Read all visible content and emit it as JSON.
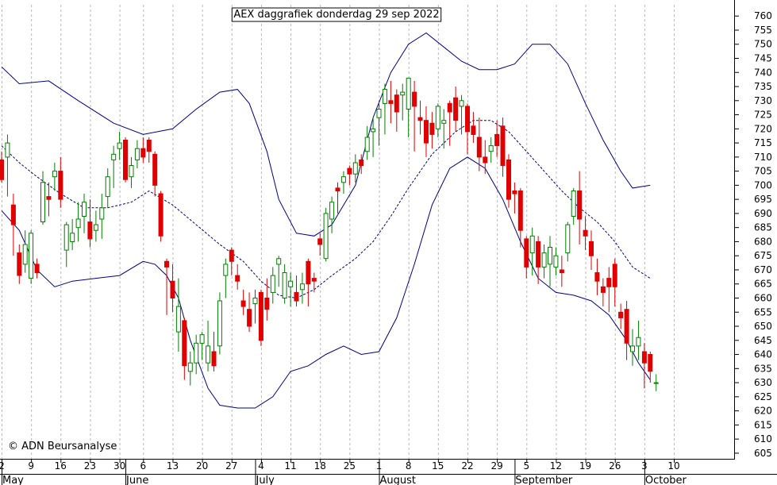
{
  "chart_data": {
    "type": "candlestick",
    "title": "AEX daggrafiek donderdag 29 sep 2022",
    "credit": "© ADN Beursanalyse",
    "y_axis_side": "right",
    "ylim": [
      603,
      764
    ],
    "yticks": [
      605,
      610,
      615,
      620,
      625,
      630,
      635,
      640,
      645,
      650,
      655,
      660,
      665,
      670,
      675,
      680,
      685,
      690,
      695,
      700,
      705,
      710,
      715,
      720,
      725,
      730,
      735,
      740,
      745,
      750,
      755,
      760
    ],
    "grid": "vertical-dashed",
    "x_tick_labels": [
      {
        "i": 0,
        "label": "2"
      },
      {
        "i": 5,
        "label": "9"
      },
      {
        "i": 10,
        "label": "16"
      },
      {
        "i": 15,
        "label": "23"
      },
      {
        "i": 20,
        "label": "30"
      },
      {
        "i": 24,
        "label": "6"
      },
      {
        "i": 29,
        "label": "13"
      },
      {
        "i": 34,
        "label": "20"
      },
      {
        "i": 39,
        "label": "27"
      },
      {
        "i": 44,
        "label": "4"
      },
      {
        "i": 49,
        "label": "11"
      },
      {
        "i": 54,
        "label": "18"
      },
      {
        "i": 59,
        "label": "25"
      },
      {
        "i": 64,
        "label": "1"
      },
      {
        "i": 69,
        "label": "8"
      },
      {
        "i": 74,
        "label": "15"
      },
      {
        "i": 79,
        "label": "22"
      },
      {
        "i": 84,
        "label": "29"
      },
      {
        "i": 89,
        "label": "5"
      },
      {
        "i": 94,
        "label": "12"
      },
      {
        "i": 99,
        "label": "19"
      },
      {
        "i": 104,
        "label": "26"
      },
      {
        "i": 109,
        "label": "3"
      },
      {
        "i": 114,
        "label": "10"
      }
    ],
    "months": [
      {
        "i": 0,
        "label": "May"
      },
      {
        "i": 21,
        "label": "June"
      },
      {
        "i": 43,
        "label": "July"
      },
      {
        "i": 64,
        "label": "August"
      },
      {
        "i": 87,
        "label": "September"
      },
      {
        "i": 109,
        "label": "October"
      }
    ],
    "candles": [
      [
        709,
        712,
        701,
        702
      ],
      [
        710,
        718,
        696,
        715
      ],
      [
        693,
        697,
        675,
        686
      ],
      [
        676,
        679,
        665,
        668
      ],
      [
        672,
        684,
        669,
        679
      ],
      [
        667,
        684,
        665,
        683
      ],
      [
        672,
        674,
        667,
        669
      ],
      [
        687,
        705,
        686,
        701
      ],
      [
        696,
        701,
        689,
        695
      ],
      [
        703,
        708,
        698,
        705
      ],
      [
        705,
        710,
        692,
        695
      ],
      [
        677,
        687,
        671,
        686
      ],
      [
        680,
        688,
        677,
        683
      ],
      [
        685,
        694,
        680,
        688
      ],
      [
        689,
        697,
        683,
        694
      ],
      [
        687,
        695,
        678,
        681
      ],
      [
        684,
        691,
        680,
        686
      ],
      [
        688,
        697,
        681,
        692
      ],
      [
        696,
        706,
        692,
        703
      ],
      [
        709,
        714,
        699,
        711
      ],
      [
        713,
        719,
        709,
        715
      ],
      [
        716,
        717,
        701,
        702
      ],
      [
        703,
        710,
        699,
        707
      ],
      [
        709,
        716,
        706,
        713
      ],
      [
        713,
        717,
        708,
        710
      ],
      [
        716,
        717,
        708,
        712
      ],
      [
        711,
        712,
        696,
        700
      ],
      [
        697,
        698,
        680,
        682
      ],
      [
        673,
        674,
        654,
        671
      ],
      [
        666,
        672,
        655,
        660
      ],
      [
        648,
        667,
        641,
        657
      ],
      [
        652,
        653,
        631,
        636
      ],
      [
        634,
        641,
        629,
        637
      ],
      [
        637,
        647,
        633,
        644
      ],
      [
        644,
        648,
        638,
        647
      ],
      [
        637,
        652,
        634,
        643
      ],
      [
        641,
        648,
        634,
        636
      ],
      [
        643,
        662,
        640,
        659
      ],
      [
        668,
        674,
        660,
        672
      ],
      [
        677,
        678,
        668,
        673
      ],
      [
        668,
        672,
        663,
        666
      ],
      [
        659,
        663,
        654,
        657
      ],
      [
        656,
        662,
        648,
        650
      ],
      [
        658,
        663,
        651,
        660
      ],
      [
        662,
        663,
        643,
        645
      ],
      [
        660,
        667,
        652,
        656
      ],
      [
        662,
        671,
        658,
        668
      ],
      [
        672,
        675,
        664,
        674
      ],
      [
        660,
        672,
        658,
        669
      ],
      [
        664,
        669,
        657,
        666
      ],
      [
        662,
        668,
        657,
        659
      ],
      [
        663,
        669,
        658,
        665
      ],
      [
        673,
        674,
        657,
        665
      ],
      [
        667,
        669,
        662,
        666
      ],
      [
        681,
        683,
        675,
        679
      ],
      [
        674,
        692,
        673,
        690
      ],
      [
        688,
        696,
        683,
        694
      ],
      [
        699,
        701,
        690,
        698
      ],
      [
        701,
        705,
        697,
        703
      ],
      [
        706,
        707,
        700,
        704
      ],
      [
        704,
        711,
        701,
        708
      ],
      [
        709,
        711,
        704,
        707
      ],
      [
        712,
        721,
        709,
        717
      ],
      [
        719,
        724,
        710,
        720
      ],
      [
        724,
        730,
        714,
        727
      ],
      [
        729,
        736,
        718,
        734
      ],
      [
        730,
        737,
        722,
        729
      ],
      [
        732,
        734,
        719,
        726
      ],
      [
        732,
        736,
        723,
        733
      ],
      [
        727,
        738,
        717,
        738
      ],
      [
        733,
        737,
        712,
        728
      ],
      [
        724,
        730,
        718,
        723
      ],
      [
        723,
        728,
        710,
        715
      ],
      [
        722,
        726,
        713,
        718
      ],
      [
        720,
        729,
        717,
        728
      ],
      [
        722,
        727,
        713,
        723
      ],
      [
        729,
        730,
        714,
        726
      ],
      [
        731,
        735,
        719,
        723
      ],
      [
        728,
        732,
        718,
        730
      ],
      [
        728,
        729,
        711,
        719
      ],
      [
        721,
        726,
        715,
        718
      ],
      [
        717,
        724,
        705,
        710
      ],
      [
        710,
        716,
        704,
        708
      ],
      [
        712,
        717,
        708,
        714
      ],
      [
        718,
        723,
        710,
        714
      ],
      [
        721,
        724,
        703,
        707
      ],
      [
        709,
        711,
        692,
        695
      ],
      [
        698,
        701,
        690,
        697
      ],
      [
        698,
        699,
        678,
        684
      ],
      [
        681,
        682,
        667,
        671
      ],
      [
        676,
        685,
        668,
        682
      ],
      [
        680,
        682,
        665,
        671
      ],
      [
        671,
        679,
        667,
        676
      ],
      [
        672,
        682,
        664,
        678
      ],
      [
        671,
        678,
        668,
        675
      ],
      [
        670,
        675,
        664,
        669
      ],
      [
        676,
        687,
        673,
        686
      ],
      [
        689,
        699,
        686,
        698
      ],
      [
        698,
        705,
        679,
        688
      ],
      [
        684,
        689,
        677,
        682
      ],
      [
        680,
        684,
        670,
        675
      ],
      [
        669,
        674,
        661,
        666
      ],
      [
        664,
        667,
        657,
        662
      ],
      [
        667,
        671,
        655,
        664
      ],
      [
        672,
        674,
        657,
        664
      ],
      [
        655,
        658,
        649,
        653
      ],
      [
        656,
        659,
        638,
        644
      ],
      [
        641,
        649,
        636,
        643
      ],
      [
        643,
        652,
        638,
        646
      ],
      [
        641,
        644,
        628,
        637
      ],
      [
        640,
        641,
        630,
        634
      ],
      [
        630,
        633,
        627,
        630
      ]
    ],
    "bollinger_upper": [
      [
        0,
        742
      ],
      [
        3,
        736
      ],
      [
        8,
        737
      ],
      [
        13,
        730
      ],
      [
        19,
        722
      ],
      [
        24,
        718
      ],
      [
        29,
        720
      ],
      [
        33,
        727
      ],
      [
        37,
        733
      ],
      [
        40,
        734
      ],
      [
        42,
        729
      ],
      [
        45,
        712
      ],
      [
        47,
        695
      ],
      [
        50,
        683
      ],
      [
        53,
        682
      ],
      [
        56,
        686
      ],
      [
        60,
        700
      ],
      [
        63,
        724
      ],
      [
        66,
        740
      ],
      [
        69,
        750
      ],
      [
        72,
        754
      ],
      [
        75,
        749
      ],
      [
        78,
        744
      ],
      [
        81,
        741
      ],
      [
        84,
        741
      ],
      [
        87,
        743
      ],
      [
        90,
        750
      ],
      [
        93,
        750
      ],
      [
        96,
        743
      ],
      [
        99,
        729
      ],
      [
        102,
        716
      ],
      [
        105,
        705
      ],
      [
        107,
        699
      ],
      [
        110,
        700
      ]
    ],
    "bollinger_mid": [
      [
        0,
        714
      ],
      [
        3,
        708
      ],
      [
        6,
        703
      ],
      [
        10,
        697
      ],
      [
        14,
        692
      ],
      [
        18,
        692
      ],
      [
        22,
        694
      ],
      [
        25,
        698
      ],
      [
        29,
        693
      ],
      [
        33,
        686
      ],
      [
        37,
        679
      ],
      [
        41,
        673
      ],
      [
        44,
        666
      ],
      [
        47,
        661
      ],
      [
        50,
        660
      ],
      [
        53,
        663
      ],
      [
        56,
        668
      ],
      [
        60,
        674
      ],
      [
        63,
        680
      ],
      [
        66,
        689
      ],
      [
        69,
        699
      ],
      [
        73,
        711
      ],
      [
        77,
        719
      ],
      [
        80,
        723
      ],
      [
        83,
        723
      ],
      [
        86,
        719
      ],
      [
        89,
        712
      ],
      [
        92,
        705
      ],
      [
        95,
        698
      ],
      [
        98,
        692
      ],
      [
        101,
        687
      ],
      [
        104,
        680
      ],
      [
        107,
        671
      ],
      [
        110,
        667
      ]
    ],
    "bollinger_lower": [
      [
        0,
        691
      ],
      [
        3,
        684
      ],
      [
        6,
        670
      ],
      [
        9,
        664
      ],
      [
        12,
        666
      ],
      [
        16,
        667
      ],
      [
        20,
        668
      ],
      [
        24,
        673
      ],
      [
        26,
        672
      ],
      [
        28,
        668
      ],
      [
        30,
        660
      ],
      [
        32,
        645
      ],
      [
        35,
        628
      ],
      [
        37,
        622
      ],
      [
        40,
        621
      ],
      [
        43,
        621
      ],
      [
        46,
        625
      ],
      [
        49,
        634
      ],
      [
        52,
        636
      ],
      [
        55,
        640
      ],
      [
        58,
        643
      ],
      [
        61,
        640
      ],
      [
        64,
        641
      ],
      [
        67,
        653
      ],
      [
        70,
        672
      ],
      [
        73,
        693
      ],
      [
        76,
        706
      ],
      [
        79,
        710
      ],
      [
        82,
        706
      ],
      [
        85,
        695
      ],
      [
        88,
        680
      ],
      [
        91,
        667
      ],
      [
        94,
        662
      ],
      [
        97,
        661
      ],
      [
        100,
        659
      ],
      [
        103,
        654
      ],
      [
        106,
        645
      ],
      [
        108,
        637
      ],
      [
        110,
        631
      ]
    ],
    "colors": {
      "up": "#008000",
      "down": "#e00000",
      "bands": "#00008b",
      "grid": "#b8b8b8",
      "axis": "#000000"
    }
  }
}
